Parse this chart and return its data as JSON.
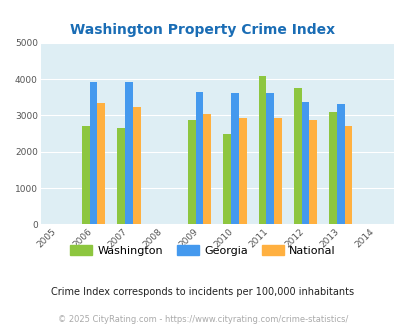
{
  "title": "Washington Property Crime Index",
  "all_years": [
    2005,
    2006,
    2007,
    2008,
    2009,
    2010,
    2011,
    2012,
    2013,
    2014
  ],
  "data_years": [
    2006,
    2007,
    2009,
    2010,
    2011,
    2012,
    2013
  ],
  "washington": [
    2700,
    2660,
    2880,
    2490,
    4090,
    3760,
    3090
  ],
  "georgia": [
    3910,
    3910,
    3660,
    3630,
    3620,
    3380,
    3310
  ],
  "national": [
    3340,
    3240,
    3030,
    2940,
    2920,
    2870,
    2700
  ],
  "washington_color": "#8dc63f",
  "georgia_color": "#4499ee",
  "national_color": "#ffb040",
  "bg_color": "#deeef4",
  "ylim": [
    0,
    5000
  ],
  "yticks": [
    0,
    1000,
    2000,
    3000,
    4000,
    5000
  ],
  "bar_width": 0.22,
  "note": "Crime Index corresponds to incidents per 100,000 inhabitants",
  "footer": "© 2025 CityRating.com - https://www.cityrating.com/crime-statistics/",
  "legend_labels": [
    "Washington",
    "Georgia",
    "National"
  ],
  "title_color": "#1a6db5",
  "note_color": "#222222",
  "footer_color": "#aaaaaa",
  "tick_color": "#555555",
  "xlim_left": 2004.5,
  "xlim_right": 2014.5
}
